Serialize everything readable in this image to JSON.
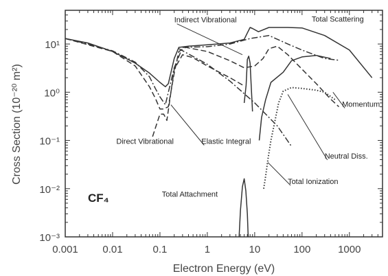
{
  "chart_data": {
    "type": "line",
    "ylabel": "Cross Section (10⁻²⁰ m²)",
    "xlabel": "Electron Energy (eV)",
    "xscale": "log",
    "yscale": "log",
    "xlim": [
      0.001,
      5000
    ],
    "ylim": [
      0.001,
      50
    ],
    "xticks": [
      "0.001",
      "0.01",
      "0.1",
      "1",
      "10",
      "100",
      "1000"
    ],
    "yticks": [
      "10⁻³",
      "10⁻²",
      "10⁻¹",
      "10⁰",
      "10¹"
    ],
    "gas_label": "CF₄",
    "grid": false,
    "series": [
      {
        "name": "Total Scattering",
        "style": "solid",
        "points": [
          [
            0.001,
            13
          ],
          [
            0.003,
            10.5
          ],
          [
            0.01,
            7
          ],
          [
            0.03,
            4
          ],
          [
            0.06,
            2.5
          ],
          [
            0.1,
            1.6
          ],
          [
            0.13,
            1.3
          ],
          [
            0.15,
            1.5
          ],
          [
            0.2,
            5
          ],
          [
            0.25,
            8.5
          ],
          [
            0.4,
            9
          ],
          [
            1,
            9.6
          ],
          [
            3,
            10.5
          ],
          [
            6,
            12.5
          ],
          [
            7,
            17
          ],
          [
            8,
            22
          ],
          [
            9,
            21
          ],
          [
            12,
            18
          ],
          [
            20,
            22
          ],
          [
            50,
            22
          ],
          [
            100,
            21.5
          ],
          [
            300,
            15
          ],
          [
            1000,
            7.5
          ],
          [
            3000,
            2
          ]
        ]
      },
      {
        "name": "Momentum",
        "style": "dashed",
        "points": [
          [
            0.001,
            13
          ],
          [
            0.01,
            7
          ],
          [
            0.03,
            3.5
          ],
          [
            0.06,
            1.3
          ],
          [
            0.08,
            0.75
          ],
          [
            0.1,
            0.45
          ],
          [
            0.12,
            0.45
          ],
          [
            0.15,
            0.5
          ],
          [
            0.2,
            2.5
          ],
          [
            0.25,
            7
          ],
          [
            0.35,
            8.5
          ],
          [
            1,
            7
          ],
          [
            3,
            4.5
          ],
          [
            6,
            3.2
          ],
          [
            10,
            3.5
          ],
          [
            15,
            5
          ],
          [
            20,
            8
          ],
          [
            30,
            9
          ],
          [
            50,
            6
          ],
          [
            100,
            3
          ],
          [
            200,
            1.5
          ],
          [
            400,
            0.72
          ],
          [
            600,
            0.5
          ]
        ]
      },
      {
        "name": "Elastic Integral",
        "style": "dash-dot",
        "points": [
          [
            0.001,
            13
          ],
          [
            0.003,
            10
          ],
          [
            0.01,
            7.2
          ],
          [
            0.03,
            4.2
          ],
          [
            0.06,
            2.1
          ],
          [
            0.08,
            1.2
          ],
          [
            0.1,
            0.8
          ],
          [
            0.13,
            0.55
          ],
          [
            0.2,
            3.2
          ],
          [
            0.3,
            8.5
          ],
          [
            1,
            8.8
          ],
          [
            3,
            10
          ],
          [
            8,
            13
          ],
          [
            20,
            15
          ],
          [
            50,
            10
          ],
          [
            100,
            7.5
          ],
          [
            300,
            5
          ],
          [
            600,
            4.6
          ]
        ]
      },
      {
        "name": "Direct Vibrational",
        "style": "dashed",
        "points": [
          [
            0.07,
            0.12
          ],
          [
            0.08,
            0.18
          ],
          [
            0.1,
            0.35
          ],
          [
            0.12,
            0.35
          ],
          [
            0.14,
            0.26
          ],
          [
            0.2,
            3
          ],
          [
            0.3,
            6
          ],
          [
            0.5,
            5.2
          ],
          [
            1,
            3.5
          ],
          [
            3,
            2
          ],
          [
            6,
            1.35
          ]
        ]
      },
      {
        "name": "Elastic Integral tail",
        "style": "dash-dot",
        "points": [
          [
            0.25,
            8
          ],
          [
            1,
            3.8
          ],
          [
            3,
            1.7
          ],
          [
            10,
            0.6
          ],
          [
            30,
            0.2
          ],
          [
            60,
            0.075
          ]
        ]
      },
      {
        "name": "Indirect Vibrational",
        "style": "solid",
        "points": [
          [
            6,
            0.6
          ],
          [
            6.6,
            1.4
          ],
          [
            7,
            4.8
          ],
          [
            7.5,
            5.6
          ],
          [
            8,
            4
          ],
          [
            8.5,
            1.2
          ],
          [
            9,
            0.4
          ]
        ]
      },
      {
        "name": "Neutral Diss.",
        "style": "solid",
        "points": [
          [
            12.5,
            0.1
          ],
          [
            14,
            0.3
          ],
          [
            17,
            0.7
          ],
          [
            22,
            1.6
          ],
          [
            40,
            2.6
          ],
          [
            60,
            4.5
          ],
          [
            100,
            5.4
          ],
          [
            200,
            5.8
          ],
          [
            400,
            5
          ]
        ]
      },
      {
        "name": "Total Ionization",
        "style": "dotted",
        "points": [
          [
            15.5,
            0.01
          ],
          [
            17,
            0.018
          ],
          [
            19,
            0.04
          ],
          [
            22,
            0.1
          ],
          [
            26,
            0.22
          ],
          [
            32,
            0.6
          ],
          [
            40,
            1.05
          ],
          [
            60,
            1.25
          ],
          [
            100,
            1.2
          ],
          [
            200,
            1.1
          ],
          [
            300,
            1.0
          ],
          [
            500,
            0.7
          ]
        ]
      },
      {
        "name": "Total Attachment",
        "style": "solid",
        "points": [
          [
            4.7,
            0.001
          ],
          [
            5,
            0.0035
          ],
          [
            5.5,
            0.011
          ],
          [
            6,
            0.016
          ],
          [
            6.5,
            0.009
          ],
          [
            7,
            0.003
          ],
          [
            7.3,
            0.001
          ]
        ]
      }
    ],
    "annotations": [
      {
        "text": "Indirect Vibrational",
        "x": 0.2,
        "y": 28,
        "target": [
          5.5,
          6
        ]
      },
      {
        "text": "Total Scattering",
        "x": 160,
        "y": 29
      },
      {
        "text": "Direct Vibrational",
        "x": 0.012,
        "y": 0.085
      },
      {
        "text": "Elastic Integral",
        "x": 0.75,
        "y": 0.085,
        "target": [
          0.17,
          0.55
        ]
      },
      {
        "text": "Momentum",
        "x": 700,
        "y": 0.5,
        "target": [
          450,
          1.0
        ]
      },
      {
        "text": "Neutral Diss.",
        "x": 300,
        "y": 0.042,
        "target": [
          50,
          0.9
        ]
      },
      {
        "text": "Total Ionization",
        "x": 50,
        "y": 0.0125,
        "target": [
          19,
          0.035
        ]
      },
      {
        "text": "Total Attachment",
        "x": 0.11,
        "y": 0.0068
      }
    ]
  }
}
